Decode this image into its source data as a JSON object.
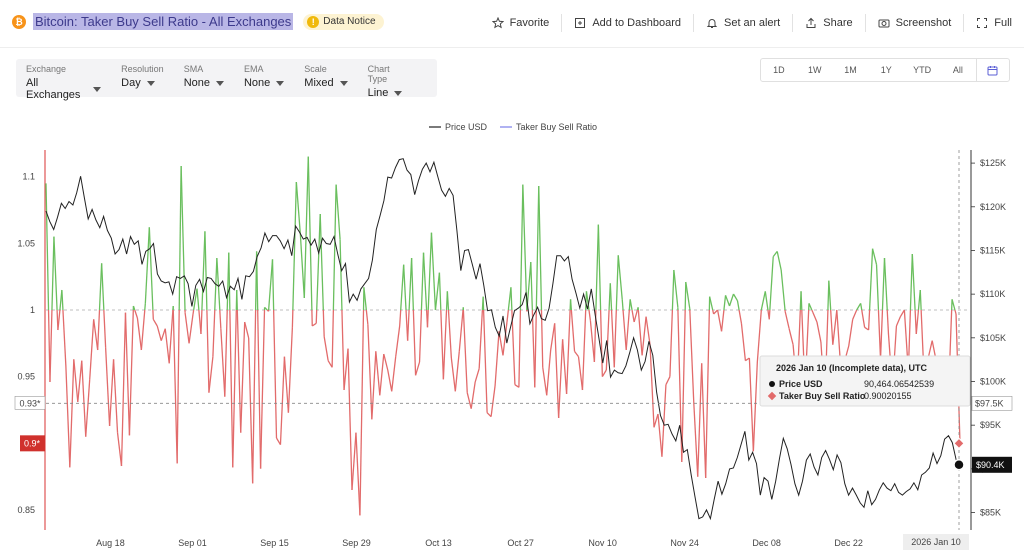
{
  "header": {
    "title": "Bitcoin: Taker Buy Sell Ratio - All Exchanges",
    "coin_symbol": "₿",
    "notice_label": "Data Notice",
    "actions": [
      "Favorite",
      "Add to Dashboard",
      "Set an alert",
      "Share",
      "Screenshot",
      "Full"
    ]
  },
  "controls": [
    {
      "label": "Exchange",
      "value": "All Exchanges"
    },
    {
      "label": "Resolution",
      "value": "Day"
    },
    {
      "label": "SMA",
      "value": "None"
    },
    {
      "label": "EMA",
      "value": "None"
    },
    {
      "label": "Scale",
      "value": "Mixed"
    },
    {
      "label": "Chart Type",
      "value": "Line"
    }
  ],
  "ranges": [
    "1D",
    "1W",
    "1M",
    "1Y",
    "YTD",
    "All"
  ],
  "colors": {
    "price": "#222222",
    "ratio_legend": "#7b7fe8",
    "ratio_up": "#6abf5e",
    "ratio_down": "#e26b6b",
    "tooltip_bg": "#f5f5f5",
    "accent": "#f7931a"
  },
  "chart_data": {
    "type": "line",
    "legend": [
      "Price USD",
      "Taker Buy Sell Ratio"
    ],
    "legend_position": "top-center",
    "x_start": "2025-08-07",
    "x_end": "2026-01-10",
    "x_tick_labels": [
      {
        "label": "Aug 18",
        "date": "2025-08-18"
      },
      {
        "label": "Sep 01",
        "date": "2025-09-01"
      },
      {
        "label": "Sep 15",
        "date": "2025-09-15"
      },
      {
        "label": "Sep 29",
        "date": "2025-09-29"
      },
      {
        "label": "Oct 13",
        "date": "2025-10-13"
      },
      {
        "label": "Oct 27",
        "date": "2025-10-27"
      },
      {
        "label": "Nov 10",
        "date": "2025-11-10"
      },
      {
        "label": "Nov 24",
        "date": "2025-11-24"
      },
      {
        "label": "Dec 08",
        "date": "2025-12-08"
      },
      {
        "label": "Dec 22",
        "date": "2025-12-22"
      }
    ],
    "y_left": {
      "ticks": [
        0.85,
        0.9,
        0.95,
        1,
        1.05,
        1.1
      ],
      "tick_labels": [
        "0.85",
        "0.9",
        "0.95",
        "1",
        "1.05",
        "1.1"
      ],
      "range": [
        0.835,
        1.12
      ],
      "baseline": 1
    },
    "y_right": {
      "ticks": [
        85000,
        90000,
        95000,
        100000,
        105000,
        110000,
        115000,
        120000,
        125000
      ],
      "tick_labels": [
        "$85K",
        "$90K",
        "$95K",
        "$100K",
        "$105K",
        "$110K",
        "$115K",
        "$120K",
        "$125K"
      ],
      "range": [
        83000,
        126500
      ]
    },
    "markers": {
      "left_label_093": "0.93*",
      "left_label_090": "0.9*",
      "right_label_975": "$97.5K",
      "right_label_904": "$90.4K",
      "x_label_last": "2026 Jan 10"
    },
    "series": [
      {
        "name": "Taker Buy Sell Ratio",
        "axis": "left",
        "values": [
          1.095,
          0.946,
          1.055,
          0.985,
          1.015,
          0.958,
          0.882,
          0.963,
          0.931,
          0.962,
          0.905,
          0.948,
          0.993,
          0.97,
          1.035,
          0.972,
          0.913,
          0.963,
          0.908,
          0.883,
          0.998,
          0.906,
          1.003,
          0.994,
          0.97,
          1.005,
          1.062,
          0.993,
          0.988,
          0.977,
          0.986,
          0.96,
          1.003,
          0.885,
          1.108,
          0.998,
          0.975,
          0.997,
          1.016,
          0.982,
          1.059,
          0.938,
          0.965,
          1.039,
          0.986,
          0.935,
          1.043,
          0.882,
          1.015,
          0.908,
          0.991,
          0.979,
          0.87,
          1.044,
          0.881,
          1.002,
          0.999,
          1.038,
          0.904,
          0.899,
          0.965,
          0.923,
          0.987,
          1.096,
          1.057,
          1.009,
          1.115,
          0.988,
          0.99,
          1.072,
          0.98,
          0.962,
          0.957,
          1.094,
          1.053,
          0.94,
          0.971,
          0.865,
          0.908,
          0.846,
          1.017,
          0.989,
          0.918,
          0.969,
          0.936,
          0.967,
          0.955,
          0.939,
          0.965,
          0.988,
          1.034,
          0.977,
          1.039,
          0.951,
          0.961,
          1.043,
          0.987,
          1.058,
          1.0,
          1.028,
          0.948,
          1.014,
          0.964,
          0.939,
          0.969,
          1.002,
          0.938,
          0.926,
          0.946,
          0.956,
          1.01,
          0.923,
          0.92,
          0.943,
          0.984,
          0.966,
          0.991,
          1.017,
          0.944,
          0.942,
          1.094,
          0.999,
          1.036,
          0.942,
          1.093,
          0.957,
          0.936,
          0.97,
          0.99,
          0.919,
          0.978,
          0.937,
          1.008,
          0.969,
          0.965,
          0.94,
          1.014,
          0.992,
          0.961,
          1.064,
          0.95,
          0.955,
          1.02,
          0.957,
          1.041,
          1.008,
          0.97,
          1.008,
          0.991,
          1.002,
          0.966,
          0.995,
          0.974,
          0.912,
          0.922,
          0.89,
          0.944,
          0.95,
          1.03,
          1.002,
          0.886,
          1.021,
          1.001,
          0.931,
          0.875,
          0.96,
          0.874,
          1.01,
          0.997,
          1.0,
          0.984,
          1.011,
          1.003,
          1.012,
          1.007,
          0.99,
          0.962,
          0.964,
          0.894,
          0.961,
          1.0,
          1.014,
          0.993,
          1.04,
          1.044,
          1.03,
          0.999,
          0.986,
          0.974,
          0.94,
          1.014,
          0.94,
          1.005,
          0.998,
          0.991,
          0.976,
          0.93,
          1.022,
          0.974,
          1.0,
          0.956,
          0.962,
          0.973,
          0.993,
          1.0,
          1.005,
          0.987,
          0.985,
          1.046,
          1.034,
          0.963,
          1.039,
          0.982,
          0.941,
          0.988,
          0.995,
          1.0,
          0.954,
          1.042,
          0.982,
          1.015,
          0.947,
          0.964,
          0.977,
          0.962,
          0.959,
          0.947,
          0.928,
          1.008,
          0.997,
          0.9
        ],
        "last_value": "0.90020155"
      },
      {
        "name": "Price USD",
        "axis": "right",
        "values": [
          119500,
          118300,
          117400,
          118800,
          120400,
          119800,
          120600,
          120200,
          121600,
          123500,
          121000,
          118600,
          119700,
          118500,
          117600,
          118900,
          117300,
          116400,
          114600,
          115100,
          116300,
          114600,
          116600,
          115700,
          116100,
          113400,
          114900,
          115200,
          115800,
          112300,
          111500,
          111300,
          111400,
          110000,
          112000,
          111800,
          112100,
          111200,
          108600,
          111000,
          111700,
          110300,
          111900,
          111800,
          111200,
          110900,
          111500,
          109600,
          110900,
          110500,
          111800,
          109400,
          112100,
          112000,
          112600,
          114300,
          115300,
          117000,
          116000,
          116700,
          116700,
          116100,
          115200,
          116200,
          114400,
          117800,
          117100,
          116300,
          116500,
          115600,
          116300,
          114700,
          116400,
          115800,
          115700,
          116600,
          114500,
          112700,
          113500,
          109100,
          110000,
          109300,
          110600,
          111200,
          111800,
          113900,
          117400,
          119000,
          120700,
          123400,
          123300,
          124500,
          125400,
          125500,
          124200,
          123700,
          121400,
          123000,
          124300,
          125000,
          124000,
          125100,
          123500,
          121900,
          121200,
          122100,
          121300,
          117300,
          112700,
          115000,
          115100,
          113400,
          111700,
          113500,
          111000,
          108100,
          108200,
          106200,
          105200,
          107500,
          104400,
          106300,
          108100,
          108400,
          108800,
          110200,
          106600,
          107600,
          108500,
          107200,
          107000,
          108400,
          111200,
          114400,
          114400,
          113800,
          114300,
          111700,
          110100,
          108400,
          110000,
          108300,
          110600,
          107600,
          104900,
          102100,
          104700,
          100500,
          101300,
          101000,
          100900,
          101800,
          103300,
          105000,
          103600,
          101300,
          102300,
          104600,
          103000,
          98800,
          96100,
          95000,
          95100,
          94000,
          93200,
          95000,
          91900,
          92200,
          89300,
          86800,
          84300,
          84500,
          85300,
          84300,
          86500,
          88600,
          87100,
          88300,
          90000,
          90100,
          91300,
          92800,
          94300,
          91000,
          91900,
          90600,
          87000,
          89000,
          88600,
          86500,
          88600,
          91200,
          93500,
          92300,
          90500,
          88300,
          87000,
          88600,
          91000,
          91700,
          90200,
          89300,
          91300,
          92100,
          91100,
          89900,
          91600,
          90700,
          88300,
          87000,
          87800,
          87000,
          86100,
          85600,
          87500,
          85900,
          86500,
          87600,
          88400,
          87800,
          87500,
          88300,
          87300,
          87000,
          87400,
          87700,
          88400,
          87600,
          89300,
          89600,
          90100,
          91800,
          90600,
          91500,
          93400,
          93800,
          93000,
          91000,
          90400
        ],
        "last_value": "90,464.06542539"
      }
    ],
    "tooltip": {
      "title": "2026 Jan 10 (Incomplete data), UTC",
      "rows": [
        {
          "label": "Price USD",
          "value": "90,464.06542539"
        },
        {
          "label": "Taker Buy Sell Ratio",
          "value": "0.90020155"
        }
      ]
    },
    "grid": false
  }
}
